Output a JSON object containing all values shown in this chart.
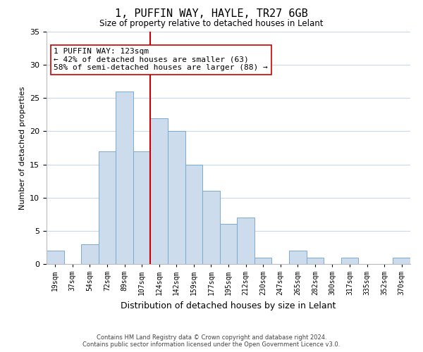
{
  "title": "1, PUFFIN WAY, HAYLE, TR27 6GB",
  "subtitle": "Size of property relative to detached houses in Lelant",
  "xlabel": "Distribution of detached houses by size in Lelant",
  "ylabel": "Number of detached properties",
  "bin_labels": [
    "19sqm",
    "37sqm",
    "54sqm",
    "72sqm",
    "89sqm",
    "107sqm",
    "124sqm",
    "142sqm",
    "159sqm",
    "177sqm",
    "195sqm",
    "212sqm",
    "230sqm",
    "247sqm",
    "265sqm",
    "282sqm",
    "300sqm",
    "317sqm",
    "335sqm",
    "352sqm",
    "370sqm"
  ],
  "bar_heights": [
    2,
    0,
    3,
    17,
    26,
    17,
    22,
    20,
    15,
    11,
    6,
    7,
    1,
    0,
    2,
    1,
    0,
    1,
    0,
    0,
    1
  ],
  "bar_color": "#ccdcec",
  "bar_edge_color": "#7aaacf",
  "property_line_index": 6,
  "pct_smaller": 42,
  "count_smaller": 63,
  "pct_larger": 58,
  "count_larger": 88,
  "line_color": "#cc0000",
  "box_edge_color": "#cc0000",
  "ylim": [
    0,
    35
  ],
  "yticks": [
    0,
    5,
    10,
    15,
    20,
    25,
    30,
    35
  ],
  "footer_line1": "Contains HM Land Registry data © Crown copyright and database right 2024.",
  "footer_line2": "Contains public sector information licensed under the Open Government Licence v3.0.",
  "bg_color": "#ffffff",
  "grid_color": "#c8daea"
}
